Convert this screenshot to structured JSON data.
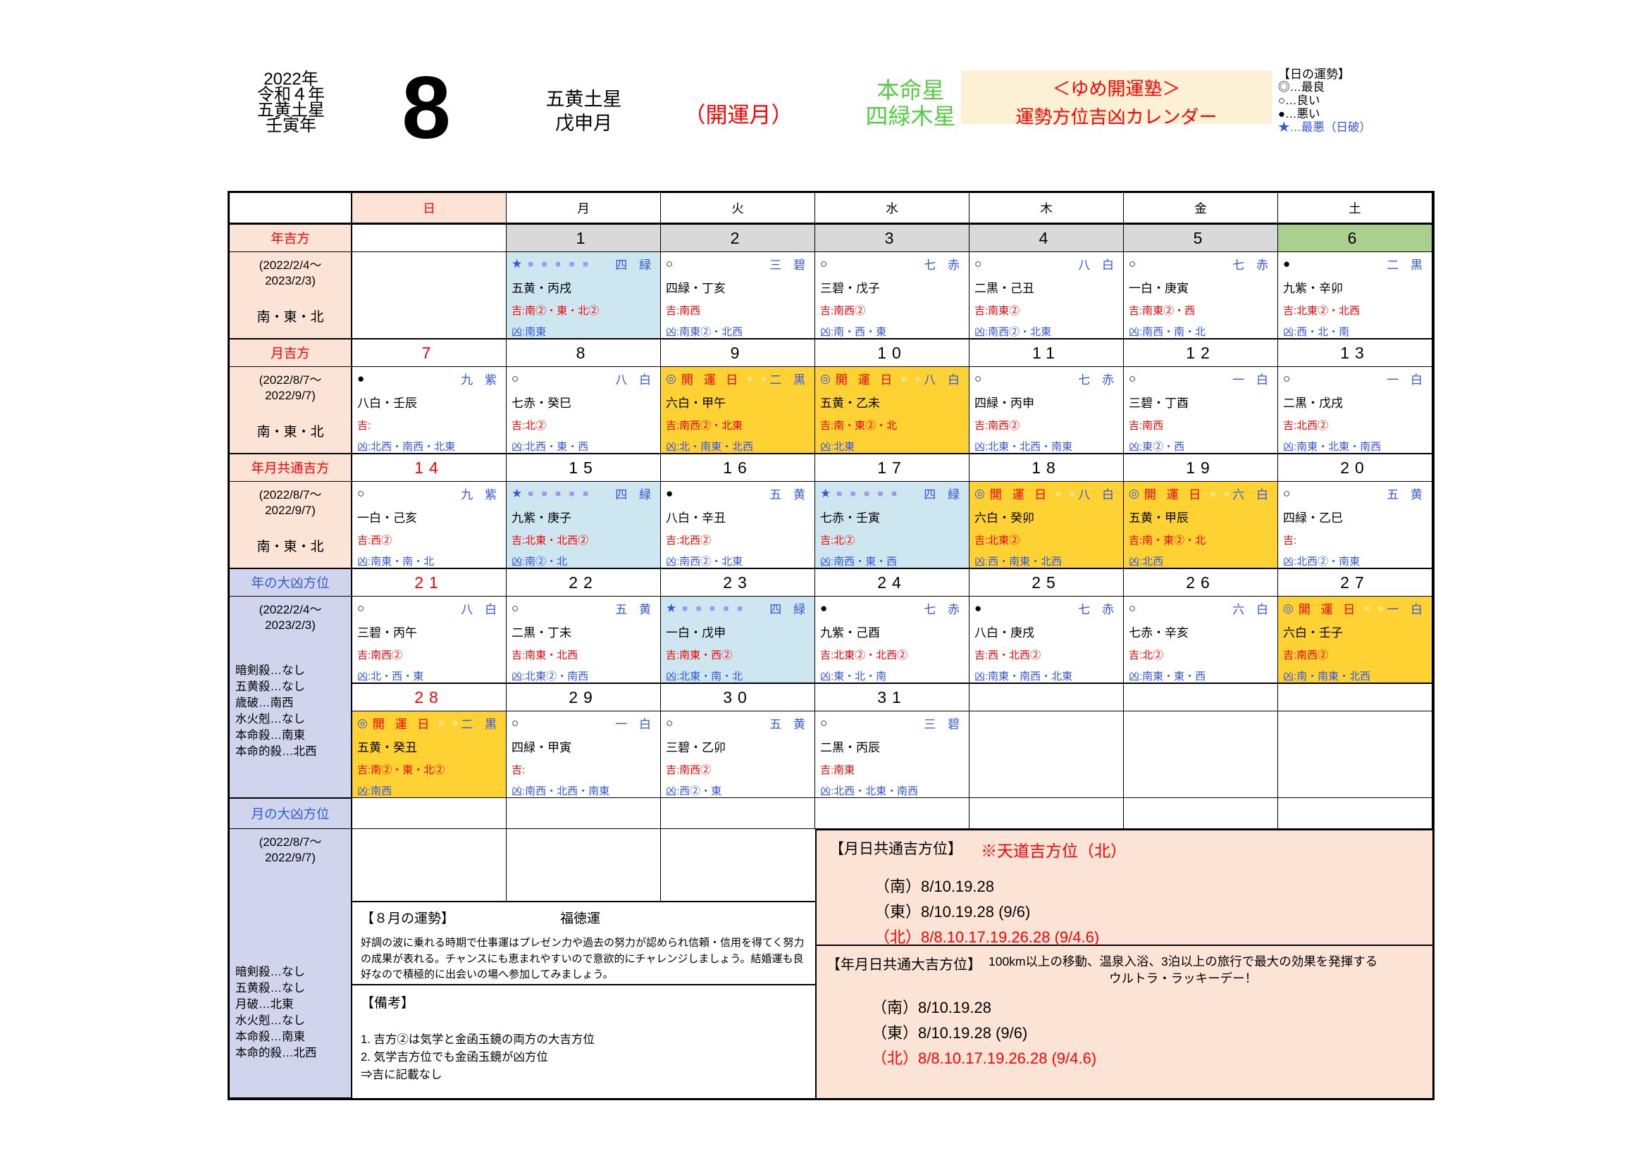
{
  "header": {
    "year_lines": [
      "2022年",
      "令和４年",
      "五黄土星",
      "壬寅年"
    ],
    "month_number": "8",
    "month_lines": [
      "五黄土星",
      "戊申月"
    ],
    "kaiun_month": "（開運月）",
    "honmei": {
      "label": "本命星",
      "star": "四緑木星"
    },
    "brand": {
      "line1": "＜ゆめ開運塾＞",
      "line2": "運勢方位吉凶カレンダー"
    },
    "legend": {
      "title": "【日の運勢】",
      "items": [
        {
          "text": "◎…最良",
          "color": "black"
        },
        {
          "text": "○…良い",
          "color": "black"
        },
        {
          "text": "●…悪い",
          "color": "black"
        },
        {
          "text": "★…最悪（日破）",
          "color": "blue"
        }
      ]
    }
  },
  "weekdays": [
    "日",
    "月",
    "火",
    "水",
    "木",
    "金",
    "土"
  ],
  "labels": {
    "kichi_prefix": "吉:",
    "kyo_prefix": "凶:",
    "kaiun_day": "開 運 日"
  },
  "sidebar": [
    {
      "id": "year-lucky-label",
      "type": "label",
      "style": "kichi",
      "text": "年吉方"
    },
    {
      "id": "year-lucky-detail",
      "type": "content",
      "range": [
        "(2022/2/4～",
        "2023/2/3)"
      ],
      "dirs": "南・東・北"
    },
    {
      "id": "month-lucky-label",
      "type": "label",
      "style": "kichi",
      "text": "月吉方"
    },
    {
      "id": "month-lucky-detail",
      "type": "content",
      "range": [
        "(2022/8/7～",
        "2022/9/7)"
      ],
      "dirs": "南・東・北"
    },
    {
      "id": "year-month-common-lucky-label",
      "type": "label",
      "style": "kichi",
      "text": "年月共通吉方"
    },
    {
      "id": "year-month-common-lucky-detail",
      "type": "content",
      "range": [
        "(2022/8/7～",
        "2022/9/7)"
      ],
      "dirs": "南・東・北"
    },
    {
      "id": "year-unlucky-label",
      "type": "label",
      "style": "kyo",
      "text": "年の大凶方位"
    },
    {
      "id": "year-unlucky-detail",
      "type": "tall",
      "span": 3,
      "range": [
        "(2022/2/4～",
        "2023/2/3)"
      ],
      "items": [
        "暗剣殺…なし",
        "五黄殺…なし",
        "歳破…南西",
        "水火剋…なし",
        "本命殺…南東",
        "本命的殺…北西"
      ]
    },
    {
      "id": "month-unlucky-label",
      "type": "label",
      "style": "kyo",
      "text": "月の大凶方位"
    },
    {
      "id": "month-unlucky-detail",
      "type": "tall",
      "span": 1,
      "range": [
        "(2022/8/7～",
        "2022/9/7)"
      ],
      "items": [
        "暗剣殺…なし",
        "五黄殺…なし",
        "月破…北東",
        "水火剋…なし",
        "本命殺…南東",
        "本命的殺…北西"
      ]
    }
  ],
  "weeks": [
    {
      "dates": [
        "",
        "1",
        "2",
        "3",
        "4",
        "5",
        "6"
      ],
      "days": [
        null,
        {
          "n": 1,
          "sym": "★",
          "symColor": "blue",
          "sq": 5,
          "star": "四 緑",
          "kan": "五黄・丙戌",
          "ki": "南②・東・北②",
          "kyo": "南東",
          "bg": "blue"
        },
        {
          "n": 2,
          "sym": "○",
          "symColor": "black",
          "sq": 0,
          "star": "三 碧",
          "kan": "四緑・丁亥",
          "ki": "南西",
          "kyo": "南東②・北西",
          "bg": ""
        },
        {
          "n": 3,
          "sym": "○",
          "symColor": "black",
          "sq": 0,
          "star": "七 赤",
          "kan": "三碧・戊子",
          "ki": "南西②",
          "kyo": "南・西・東",
          "bg": ""
        },
        {
          "n": 4,
          "sym": "○",
          "symColor": "black",
          "sq": 0,
          "star": "八 白",
          "kan": "二黒・己丑",
          "ki": "南東②",
          "kyo": "南西②・北東",
          "bg": ""
        },
        {
          "n": 5,
          "sym": "○",
          "symColor": "black",
          "sq": 0,
          "star": "七 赤",
          "kan": "一白・庚寅",
          "ki": "南東②・西",
          "kyo": "南西・南・北",
          "bg": ""
        },
        {
          "n": 6,
          "sym": "●",
          "symColor": "black",
          "sq": 0,
          "star": "二 黒",
          "kan": "九紫・辛卯",
          "ki": "北東②・北西",
          "kyo": "西・北・南",
          "bg": ""
        }
      ]
    },
    {
      "dates": [
        "7",
        "8",
        "9",
        "10",
        "11",
        "12",
        "13"
      ],
      "days": [
        {
          "n": 7,
          "sym": "●",
          "symColor": "black",
          "sq": 0,
          "star": "九 紫",
          "kan": "八白・壬辰",
          "ki": "",
          "kyo": "北西・南西・北東",
          "bg": ""
        },
        {
          "n": 8,
          "sym": "○",
          "symColor": "black",
          "sq": 0,
          "star": "八 白",
          "kan": "七赤・癸巳",
          "ki": "北②",
          "kyo": "北西・東・西",
          "bg": ""
        },
        {
          "n": 9,
          "sym": "◎",
          "symColor": "blue",
          "kaiun": true,
          "sq": 2,
          "star": "二 黒",
          "kan": "六白・甲午",
          "ki": "南西②・北東",
          "kyo": "北・南東・北西",
          "bg": "yellow"
        },
        {
          "n": 10,
          "sym": "◎",
          "symColor": "blue",
          "kaiun": true,
          "sq": 2,
          "star": "八 白",
          "kan": "五黄・乙未",
          "ki": "南・東②・北",
          "kyo": "北東",
          "bg": "yellow"
        },
        {
          "n": 11,
          "sym": "○",
          "symColor": "black",
          "sq": 0,
          "star": "七 赤",
          "kan": "四緑・丙申",
          "ki": "南西②",
          "kyo": "北東・北西・南東",
          "bg": ""
        },
        {
          "n": 12,
          "sym": "○",
          "symColor": "black",
          "sq": 0,
          "star": "一 白",
          "kan": "三碧・丁酉",
          "ki": "南西",
          "kyo": "東②・西",
          "bg": ""
        },
        {
          "n": 13,
          "sym": "○",
          "symColor": "black",
          "sq": 0,
          "star": "一 白",
          "kan": "二黒・戊戌",
          "ki": "北西②",
          "kyo": "南東・北東・南西",
          "bg": ""
        }
      ]
    },
    {
      "dates": [
        "14",
        "15",
        "16",
        "17",
        "18",
        "19",
        "20"
      ],
      "days": [
        {
          "n": 14,
          "sym": "○",
          "symColor": "black",
          "sq": 0,
          "star": "九 紫",
          "kan": "一白・己亥",
          "ki": "西②",
          "kyo": "南東・南・北",
          "bg": ""
        },
        {
          "n": 15,
          "sym": "★",
          "symColor": "blue",
          "sq": 5,
          "star": "四 緑",
          "kan": "九紫・庚子",
          "ki": "北東・北西②",
          "kyo": "南②・北",
          "bg": "blue"
        },
        {
          "n": 16,
          "sym": "●",
          "symColor": "black",
          "sq": 0,
          "star": "五 黄",
          "kan": "八白・辛丑",
          "ki": "北西②",
          "kyo": "南西②・北東",
          "bg": ""
        },
        {
          "n": 17,
          "sym": "★",
          "symColor": "blue",
          "sq": 5,
          "star": "四 緑",
          "kan": "七赤・壬寅",
          "ki": "北②",
          "kyo": "南西・東・西",
          "bg": "blue"
        },
        {
          "n": 18,
          "sym": "◎",
          "symColor": "blue",
          "kaiun": true,
          "sq": 2,
          "star": "八 白",
          "kan": "六白・癸卯",
          "ki": "北東②",
          "kyo": "西・南東・北西",
          "bg": "yellow"
        },
        {
          "n": 19,
          "sym": "◎",
          "symColor": "blue",
          "kaiun": true,
          "sq": 2,
          "star": "六 白",
          "kan": "五黄・甲辰",
          "ki": "南・東②・北",
          "kyo": "北西",
          "bg": "yellow"
        },
        {
          "n": 20,
          "sym": "○",
          "symColor": "black",
          "sq": 0,
          "star": "五 黄",
          "kan": "四緑・乙巳",
          "ki": "",
          "kyo": "北西②・南東",
          "bg": ""
        }
      ]
    },
    {
      "dates": [
        "21",
        "22",
        "23",
        "24",
        "25",
        "26",
        "27"
      ],
      "days": [
        {
          "n": 21,
          "sym": "○",
          "symColor": "black",
          "sq": 0,
          "star": "八 白",
          "kan": "三碧・丙午",
          "ki": "南西②",
          "kyo": "北・西・東",
          "bg": ""
        },
        {
          "n": 22,
          "sym": "○",
          "symColor": "black",
          "sq": 0,
          "star": "五 黄",
          "kan": "二黒・丁未",
          "ki": "南東・北西",
          "kyo": "北東②・南西",
          "bg": ""
        },
        {
          "n": 23,
          "sym": "★",
          "symColor": "blue",
          "sq": 5,
          "star": "四 緑",
          "kan": "一白・戊申",
          "ki": "南東・西②",
          "kyo": "北東・南・北",
          "bg": "blue"
        },
        {
          "n": 24,
          "sym": "●",
          "symColor": "black",
          "sq": 0,
          "star": "七 赤",
          "kan": "九紫・己酉",
          "ki": "北東②・北西②",
          "kyo": "東・北・南",
          "bg": ""
        },
        {
          "n": 25,
          "sym": "●",
          "symColor": "black",
          "sq": 0,
          "star": "七 赤",
          "kan": "八白・庚戌",
          "ki": "西・北西②",
          "kyo": "南東・南西・北東",
          "bg": ""
        },
        {
          "n": 26,
          "sym": "○",
          "symColor": "black",
          "sq": 0,
          "star": "六 白",
          "kan": "七赤・辛亥",
          "ki": "北②",
          "kyo": "南東・東・西",
          "bg": ""
        },
        {
          "n": 27,
          "sym": "◎",
          "symColor": "blue",
          "kaiun": true,
          "sq": 2,
          "star": "一 白",
          "kan": "六白・壬子",
          "ki": "南西②",
          "kyo": "南・南東・北西",
          "bg": "yellow"
        }
      ]
    },
    {
      "dates": [
        "28",
        "29",
        "30",
        "31",
        "",
        "",
        ""
      ],
      "days": [
        {
          "n": 28,
          "sym": "◎",
          "symColor": "blue",
          "kaiun": true,
          "sq": 2,
          "star": "二 黒",
          "kan": "五黄・癸丑",
          "ki": "南②・東・北②",
          "kyo": "南西",
          "bg": "yellow"
        },
        {
          "n": 29,
          "sym": "○",
          "symColor": "black",
          "sq": 0,
          "star": "一 白",
          "kan": "四緑・甲寅",
          "ki": "",
          "kyo": "南西・北西・南東",
          "bg": ""
        },
        {
          "n": 30,
          "sym": "○",
          "symColor": "black",
          "sq": 0,
          "star": "五 黄",
          "kan": "三碧・乙卯",
          "ki": "南西②",
          "kyo": "西②・東",
          "bg": ""
        },
        {
          "n": 31,
          "sym": "○",
          "symColor": "black",
          "sq": 0,
          "star": "三 碧",
          "kan": "二黒・丙辰",
          "ki": "南東",
          "kyo": "北西・北東・南西",
          "bg": ""
        },
        null,
        null,
        null
      ]
    }
  ],
  "panels": {
    "unsei": {
      "title": "【８月の運勢】",
      "subtitle": "福徳運",
      "body": "好調の波に乗れる時期で仕事運はプレゼン力や過去の努力が認められ信頼・信用を得てく努力の成果が表れる。チャンスにも恵まれやすいので意欲的にチャレンジしましょう。結婚運も良好なので積極的に出会いの場へ参加してみましょう。"
    },
    "biko": {
      "title": "【備考】",
      "lines": [
        "1. 吉方②は気学と金函玉鏡の両方の大吉方位",
        "2. 気学吉方位でも金函玉鏡が凶方位",
        "⇒吉に記載なし"
      ]
    },
    "tsuki_hi": {
      "title": "【月日共通吉方位】",
      "note": "※天道吉方位（北）",
      "lines": [
        {
          "text": "（南）8/10.19.28",
          "color": "black"
        },
        {
          "text": "（東）8/10.19.28 (9/6)",
          "color": "black"
        },
        {
          "text": "（北）8/8.10.17.19.26.28 (9/4.6)",
          "color": "red"
        }
      ]
    },
    "nen_getsu_hi": {
      "title": "【年月日共通大吉方位】",
      "desc1": "100km以上の移動、温泉入浴、3泊以上の旅行で最大の効果を発揮する",
      "desc2": "ウルトラ・ラッキーデー！",
      "lines": [
        {
          "text": "（南）8/10.19.28",
          "color": "black"
        },
        {
          "text": "（東）8/10.19.28 (9/6)",
          "color": "black"
        },
        {
          "text": "（北）8/8.10.17.19.26.28 (9/4.6)",
          "color": "red"
        }
      ]
    }
  },
  "colors": {
    "accent_red": "#FF0000",
    "direction_blue": "#3356E8",
    "unlucky_label_blue": "#3060D0",
    "honmei_green": "#55CC44",
    "peach_bg": "#FBE3D6",
    "lavender_bg": "#D0D4EC",
    "date_gray": "#D9D9D9",
    "saturday_green": "#A9D08E",
    "worst_day_blue": "#CEE6EF",
    "kaiun_yellow": "#FFD233",
    "brand_cream": "#FCF1D4"
  }
}
